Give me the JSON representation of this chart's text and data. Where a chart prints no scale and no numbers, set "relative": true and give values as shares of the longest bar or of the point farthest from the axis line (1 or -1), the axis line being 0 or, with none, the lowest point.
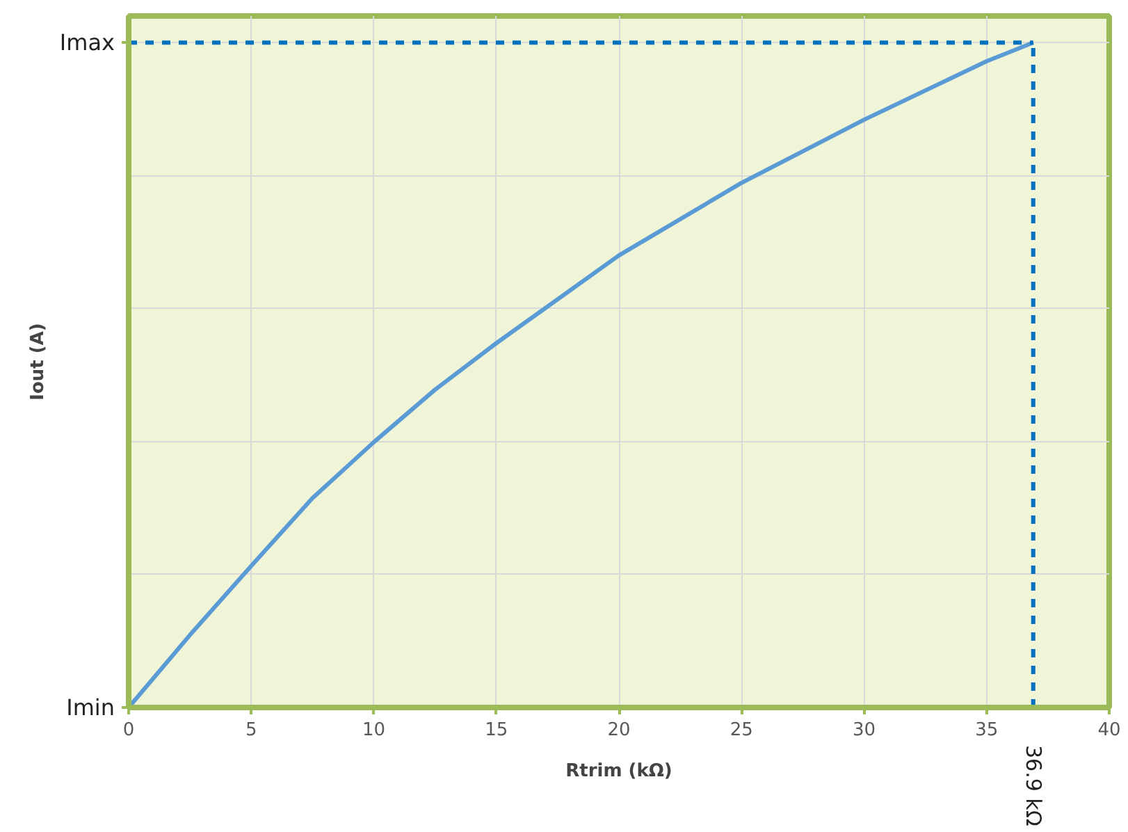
{
  "chart_data": {
    "type": "line",
    "xlabel": "Rtrim (kΩ)",
    "ylabel": "Iout (A)",
    "relative": true,
    "x": [
      0,
      2.5,
      5,
      7.5,
      10,
      12.5,
      15,
      20,
      25,
      30,
      35,
      36.9
    ],
    "series": [
      {
        "color": "#5b9bd5",
        "values": [
          0,
          0.109,
          0.213,
          0.315,
          0.399,
          0.478,
          0.548,
          0.68,
          0.789,
          0.884,
          0.972,
          1
        ]
      }
    ],
    "xlim": [
      0,
      40
    ],
    "xticks": [
      0,
      5,
      10,
      15,
      20,
      25,
      30,
      35,
      40
    ],
    "ref_lines": [
      {
        "axis": "x",
        "value": 36.9,
        "label": "36.9 kΩ",
        "color": "#0070c0",
        "line_style": "dashed"
      },
      {
        "axis": "y",
        "value": 1,
        "label": "Imax",
        "color": "#0070c0",
        "line_style": "dashed"
      },
      {
        "axis": "y",
        "value": 0,
        "label": "Imin",
        "color": "#9bbb59",
        "line_style": "solid"
      }
    ],
    "grid": true,
    "marker": "none",
    "line_style": "solid"
  }
}
